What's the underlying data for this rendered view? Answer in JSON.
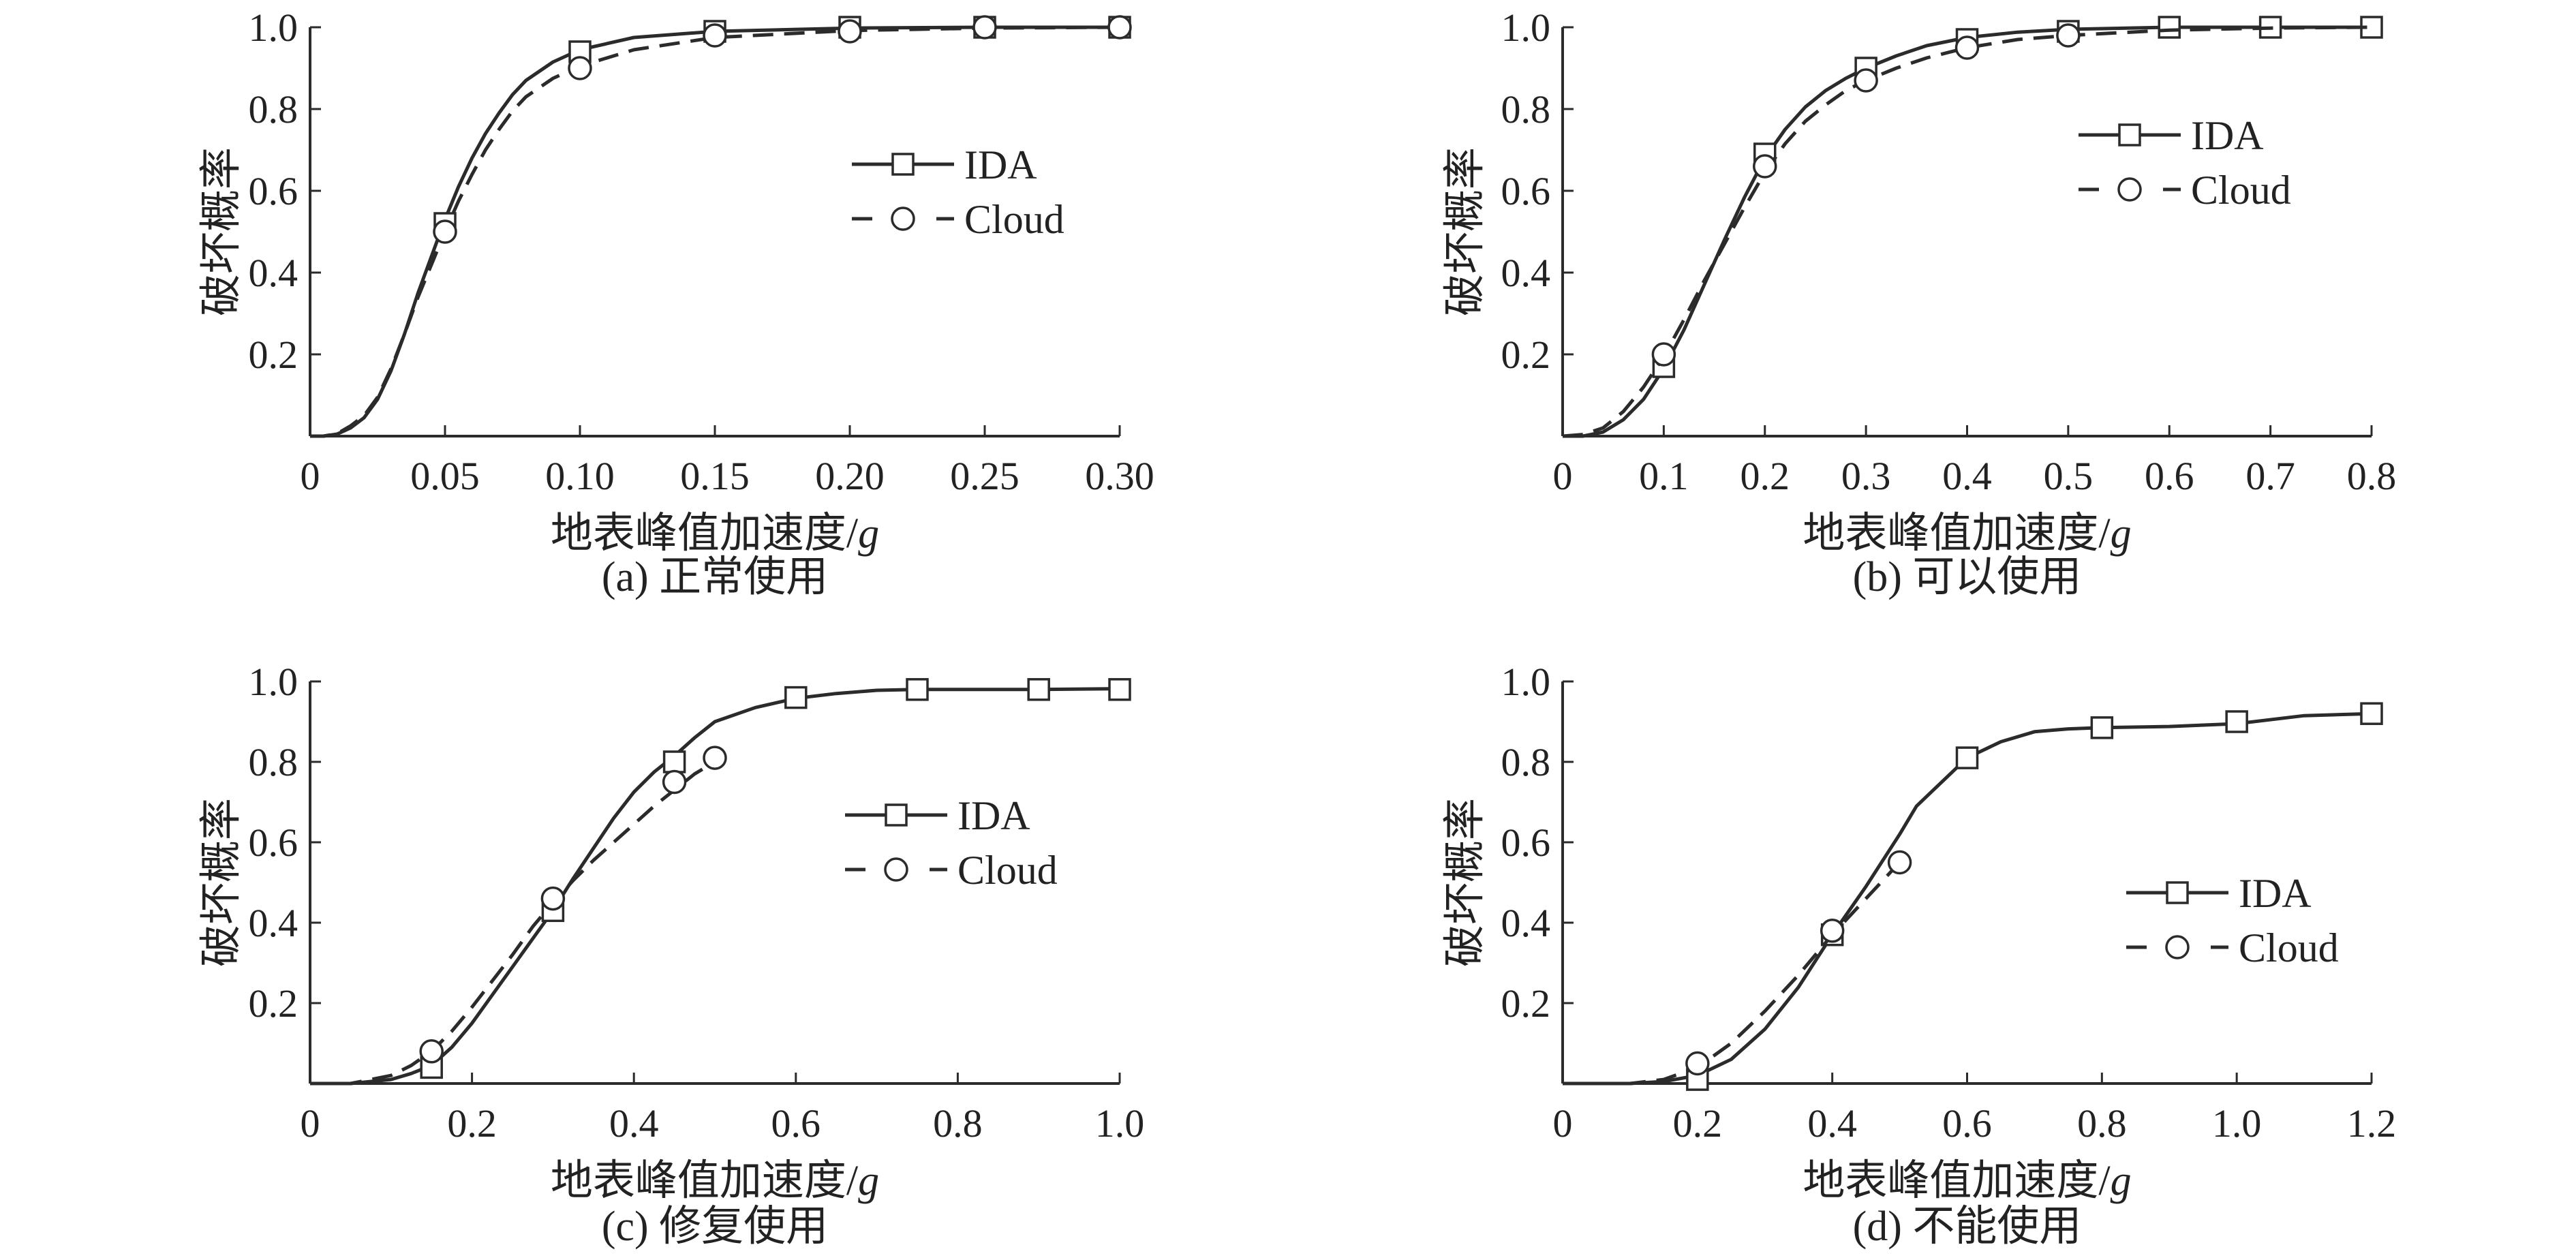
{
  "ink_color": "#2b2b2b",
  "marker_fill": "#ffffff",
  "chart_data": [
    {
      "type": "line",
      "caption": "(a) 正常使用",
      "xlabel": "地表峰值加速度/",
      "xlabel_unit": "g",
      "ylabel": "破坏概率",
      "xlim": [
        0,
        0.3
      ],
      "ylim": [
        0,
        1.0
      ],
      "xticks": [
        0,
        0.05,
        0.1,
        0.15,
        0.2,
        0.25,
        0.3
      ],
      "xtick_labels": [
        "0",
        "0.05",
        "0.10",
        "0.15",
        "0.20",
        "0.25",
        "0.30"
      ],
      "yticks": [
        0.2,
        0.4,
        0.6,
        0.8,
        1.0
      ],
      "ytick_labels": [
        "0.2",
        "0.4",
        "0.6",
        "0.8",
        "1.0"
      ],
      "legend": {
        "labels": [
          "IDA",
          "Cloud"
        ],
        "placement": "middle-right"
      },
      "series": [
        {
          "name": "IDA",
          "style": "solid",
          "marker": "square",
          "curve_x": [
            0,
            0.005,
            0.01,
            0.015,
            0.02,
            0.025,
            0.03,
            0.035,
            0.04,
            0.045,
            0.05,
            0.055,
            0.06,
            0.065,
            0.07,
            0.075,
            0.08,
            0.09,
            0.1,
            0.12,
            0.15,
            0.2,
            0.25,
            0.3
          ],
          "curve_y": [
            0,
            0,
            0.005,
            0.02,
            0.045,
            0.09,
            0.16,
            0.25,
            0.35,
            0.44,
            0.53,
            0.61,
            0.68,
            0.74,
            0.79,
            0.835,
            0.87,
            0.915,
            0.945,
            0.975,
            0.99,
            0.998,
            1.0,
            1.0
          ],
          "marker_x": [
            0.05,
            0.1,
            0.15,
            0.2,
            0.25,
            0.3
          ],
          "marker_y": [
            0.52,
            0.94,
            0.99,
            1.0,
            1.0,
            1.0
          ]
        },
        {
          "name": "Cloud",
          "style": "dashed",
          "marker": "circle",
          "curve_x": [
            0,
            0.005,
            0.01,
            0.015,
            0.02,
            0.025,
            0.03,
            0.035,
            0.04,
            0.045,
            0.05,
            0.055,
            0.06,
            0.065,
            0.07,
            0.075,
            0.08,
            0.09,
            0.1,
            0.12,
            0.15,
            0.2,
            0.25,
            0.3
          ],
          "curve_y": [
            0,
            0,
            0.006,
            0.025,
            0.05,
            0.095,
            0.165,
            0.25,
            0.34,
            0.42,
            0.5,
            0.575,
            0.64,
            0.7,
            0.75,
            0.795,
            0.83,
            0.875,
            0.905,
            0.945,
            0.975,
            0.992,
            0.998,
            1.0
          ],
          "marker_x": [
            0.05,
            0.1,
            0.15,
            0.2,
            0.25,
            0.3
          ],
          "marker_y": [
            0.5,
            0.9,
            0.98,
            0.99,
            1.0,
            1.0
          ]
        }
      ]
    },
    {
      "type": "line",
      "caption": "(b) 可以使用",
      "xlabel": "地表峰值加速度/",
      "xlabel_unit": "g",
      "ylabel": "破坏概率",
      "xlim": [
        0,
        0.8
      ],
      "ylim": [
        0,
        1.0
      ],
      "xticks": [
        0,
        0.1,
        0.2,
        0.3,
        0.4,
        0.5,
        0.6,
        0.7,
        0.8
      ],
      "xtick_labels": [
        "0",
        "0.1",
        "0.2",
        "0.3",
        "0.4",
        "0.5",
        "0.6",
        "0.7",
        "0.8"
      ],
      "yticks": [
        0.2,
        0.4,
        0.6,
        0.8,
        1.0
      ],
      "ytick_labels": [
        "0.2",
        "0.4",
        "0.6",
        "0.8",
        "1.0"
      ],
      "legend": {
        "labels": [
          "IDA",
          "Cloud"
        ],
        "placement": "middle-right"
      },
      "series": [
        {
          "name": "IDA",
          "style": "solid",
          "marker": "square",
          "curve_x": [
            0,
            0.02,
            0.04,
            0.06,
            0.08,
            0.1,
            0.12,
            0.14,
            0.16,
            0.18,
            0.2,
            0.22,
            0.24,
            0.26,
            0.28,
            0.3,
            0.33,
            0.36,
            0.4,
            0.45,
            0.5,
            0.6,
            0.7,
            0.8
          ],
          "curve_y": [
            0,
            0,
            0.01,
            0.04,
            0.09,
            0.165,
            0.26,
            0.37,
            0.48,
            0.585,
            0.68,
            0.75,
            0.805,
            0.845,
            0.875,
            0.9,
            0.93,
            0.955,
            0.975,
            0.988,
            0.995,
            1.0,
            1.0,
            1.0
          ],
          "marker_x": [
            0.1,
            0.2,
            0.3,
            0.4,
            0.5,
            0.6,
            0.7,
            0.8
          ],
          "marker_y": [
            0.17,
            0.69,
            0.9,
            0.97,
            0.99,
            1.0,
            1.0,
            1.0
          ]
        },
        {
          "name": "Cloud",
          "style": "dashed",
          "marker": "circle",
          "curve_x": [
            0,
            0.02,
            0.04,
            0.06,
            0.08,
            0.1,
            0.12,
            0.14,
            0.16,
            0.18,
            0.2,
            0.22,
            0.24,
            0.26,
            0.28,
            0.3,
            0.33,
            0.36,
            0.4,
            0.45,
            0.5,
            0.6,
            0.7,
            0.8
          ],
          "curve_y": [
            0,
            0.004,
            0.02,
            0.06,
            0.12,
            0.195,
            0.285,
            0.38,
            0.47,
            0.56,
            0.645,
            0.715,
            0.77,
            0.81,
            0.845,
            0.87,
            0.9,
            0.925,
            0.95,
            0.97,
            0.98,
            0.993,
            0.998,
            1.0
          ],
          "marker_x": [
            0.1,
            0.2,
            0.3,
            0.4,
            0.5
          ],
          "marker_y": [
            0.2,
            0.66,
            0.87,
            0.95,
            0.98
          ]
        }
      ]
    },
    {
      "type": "line",
      "caption": "(c) 修复使用",
      "xlabel": "地表峰值加速度/",
      "xlabel_unit": "g",
      "ylabel": "破坏概率",
      "xlim": [
        0,
        1.0
      ],
      "ylim": [
        0,
        1.0
      ],
      "xticks": [
        0,
        0.2,
        0.4,
        0.6,
        0.8,
        1.0
      ],
      "xtick_labels": [
        "0",
        "0.2",
        "0.4",
        "0.6",
        "0.8",
        "1.0"
      ],
      "yticks": [
        0.2,
        0.4,
        0.6,
        0.8,
        1.0
      ],
      "ytick_labels": [
        "0.2",
        "0.4",
        "0.6",
        "0.8",
        "1.0"
      ],
      "legend": {
        "labels": [
          "IDA",
          "Cloud"
        ],
        "placement": "middle-right"
      },
      "series": [
        {
          "name": "IDA",
          "style": "solid",
          "marker": "square",
          "curve_x": [
            0,
            0.05,
            0.1,
            0.125,
            0.15,
            0.175,
            0.2,
            0.225,
            0.25,
            0.275,
            0.3,
            0.325,
            0.35,
            0.375,
            0.4,
            0.425,
            0.45,
            0.475,
            0.5,
            0.55,
            0.6,
            0.65,
            0.7,
            0.75,
            0.8,
            0.9,
            1.0
          ],
          "curve_y": [
            0,
            0,
            0.01,
            0.025,
            0.045,
            0.09,
            0.15,
            0.22,
            0.29,
            0.36,
            0.43,
            0.51,
            0.585,
            0.66,
            0.725,
            0.775,
            0.815,
            0.86,
            0.9,
            0.935,
            0.958,
            0.97,
            0.978,
            0.98,
            0.98,
            0.98,
            0.982
          ],
          "marker_x": [
            0.15,
            0.3,
            0.45,
            0.6,
            0.75,
            0.9,
            1.0
          ],
          "marker_y": [
            0.04,
            0.43,
            0.8,
            0.96,
            0.98,
            0.98,
            0.98
          ]
        },
        {
          "name": "Cloud",
          "style": "dashed",
          "marker": "circle",
          "curve_x": [
            0,
            0.05,
            0.1,
            0.125,
            0.15,
            0.175,
            0.2,
            0.225,
            0.25,
            0.275,
            0.3,
            0.325,
            0.35,
            0.375,
            0.4,
            0.425,
            0.45,
            0.475,
            0.5
          ],
          "curve_y": [
            0,
            0,
            0.02,
            0.045,
            0.08,
            0.13,
            0.19,
            0.255,
            0.32,
            0.39,
            0.45,
            0.505,
            0.555,
            0.6,
            0.645,
            0.69,
            0.73,
            0.77,
            0.8
          ],
          "marker_x": [
            0.15,
            0.3,
            0.45,
            0.5
          ],
          "marker_y": [
            0.08,
            0.46,
            0.75,
            0.81
          ]
        }
      ]
    },
    {
      "type": "line",
      "caption": "(d) 不能使用",
      "xlabel": "地表峰值加速度/",
      "xlabel_unit": "g",
      "ylabel": "破坏概率",
      "xlim": [
        0,
        1.2
      ],
      "ylim": [
        0,
        1.0
      ],
      "xticks": [
        0,
        0.2,
        0.4,
        0.6,
        0.8,
        1.0,
        1.2
      ],
      "xtick_labels": [
        "0",
        "0.2",
        "0.4",
        "0.6",
        "0.8",
        "1.0",
        "1.2"
      ],
      "yticks": [
        0.2,
        0.4,
        0.6,
        0.8,
        1.0
      ],
      "ytick_labels": [
        "0.2",
        "0.4",
        "0.6",
        "0.8",
        "1.0"
      ],
      "legend": {
        "labels": [
          "IDA",
          "Cloud"
        ],
        "placement": "lower-right"
      },
      "series": [
        {
          "name": "IDA",
          "style": "solid",
          "marker": "square",
          "curve_x": [
            0,
            0.1,
            0.15,
            0.2,
            0.25,
            0.3,
            0.35,
            0.4,
            0.45,
            0.5,
            0.525,
            0.55,
            0.575,
            0.6,
            0.65,
            0.7,
            0.75,
            0.8,
            0.9,
            1.0,
            1.1,
            1.2
          ],
          "curve_y": [
            0,
            0,
            0.005,
            0.02,
            0.06,
            0.135,
            0.24,
            0.37,
            0.49,
            0.62,
            0.69,
            0.73,
            0.77,
            0.81,
            0.85,
            0.875,
            0.882,
            0.885,
            0.888,
            0.895,
            0.915,
            0.92
          ],
          "marker_x": [
            0.2,
            0.4,
            0.6,
            0.8,
            1.0,
            1.2
          ],
          "marker_y": [
            0.01,
            0.37,
            0.81,
            0.885,
            0.9,
            0.92
          ]
        },
        {
          "name": "Cloud",
          "style": "dashed",
          "marker": "circle",
          "curve_x": [
            0,
            0.1,
            0.15,
            0.2,
            0.25,
            0.3,
            0.35,
            0.4,
            0.45,
            0.5
          ],
          "curve_y": [
            0,
            0,
            0.01,
            0.04,
            0.1,
            0.18,
            0.27,
            0.37,
            0.46,
            0.55
          ],
          "marker_x": [
            0.2,
            0.4,
            0.5
          ],
          "marker_y": [
            0.05,
            0.38,
            0.55
          ]
        }
      ]
    }
  ]
}
